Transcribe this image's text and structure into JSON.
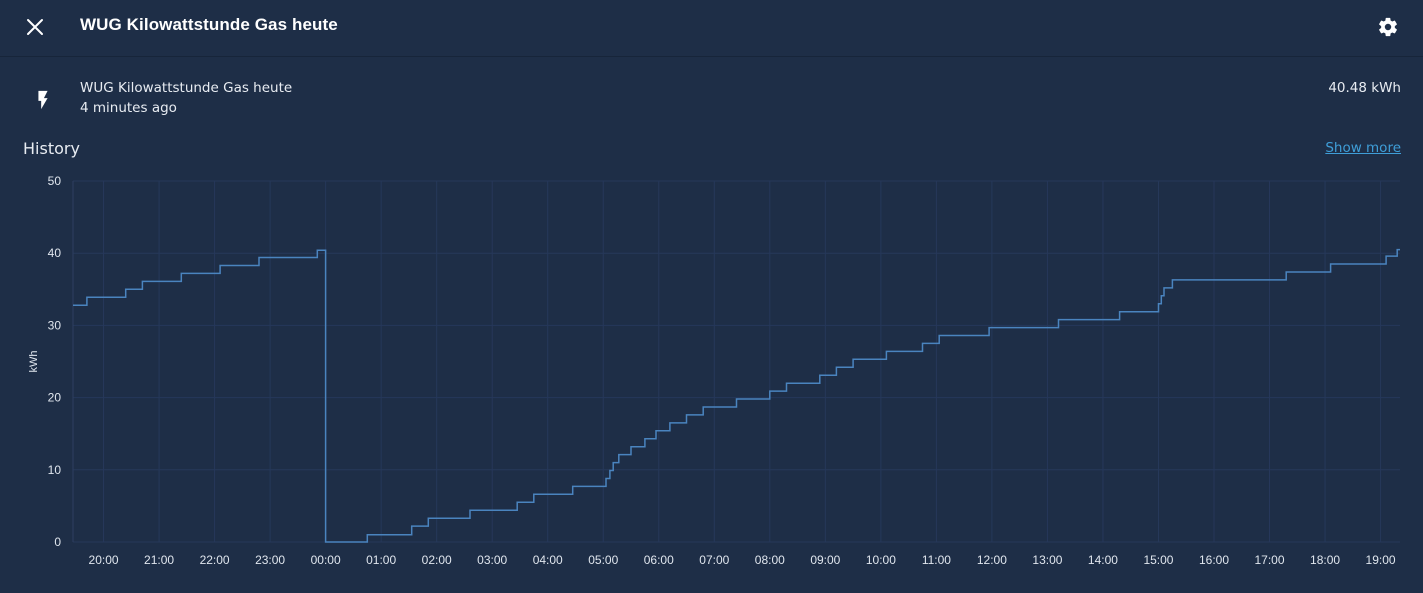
{
  "dialog": {
    "title": "WUG Kilowattstunde Gas heute"
  },
  "entity": {
    "name": "WUG Kilowattstunde Gas heute",
    "last_changed": "4 minutes ago",
    "state": "40.48 kWh",
    "icon": "flash-icon"
  },
  "history": {
    "title": "History",
    "show_more": "Show more"
  },
  "colors": {
    "background": "#1e2e47",
    "line": "#4a84bf",
    "link": "#3f9ed8"
  },
  "chart_data": {
    "type": "line",
    "step": true,
    "ylabel": "kWh",
    "ylim": [
      0,
      50
    ],
    "yticks": [
      0,
      10,
      20,
      30,
      40,
      50
    ],
    "xlim": [
      19.45,
      43.35
    ],
    "xticks": [
      {
        "x": 20,
        "label": "20:00"
      },
      {
        "x": 21,
        "label": "21:00"
      },
      {
        "x": 22,
        "label": "22:00"
      },
      {
        "x": 23,
        "label": "23:00"
      },
      {
        "x": 24,
        "label": "00:00"
      },
      {
        "x": 25,
        "label": "01:00"
      },
      {
        "x": 26,
        "label": "02:00"
      },
      {
        "x": 27,
        "label": "03:00"
      },
      {
        "x": 28,
        "label": "04:00"
      },
      {
        "x": 29,
        "label": "05:00"
      },
      {
        "x": 30,
        "label": "06:00"
      },
      {
        "x": 31,
        "label": "07:00"
      },
      {
        "x": 32,
        "label": "08:00"
      },
      {
        "x": 33,
        "label": "09:00"
      },
      {
        "x": 34,
        "label": "10:00"
      },
      {
        "x": 35,
        "label": "11:00"
      },
      {
        "x": 36,
        "label": "12:00"
      },
      {
        "x": 37,
        "label": "13:00"
      },
      {
        "x": 38,
        "label": "14:00"
      },
      {
        "x": 39,
        "label": "15:00"
      },
      {
        "x": 40,
        "label": "16:00"
      },
      {
        "x": 41,
        "label": "17:00"
      },
      {
        "x": 42,
        "label": "18:00"
      },
      {
        "x": 43,
        "label": "19:00"
      }
    ],
    "series": [
      {
        "points": [
          [
            19.45,
            32.8
          ],
          [
            19.7,
            33.9
          ],
          [
            20.4,
            35.0
          ],
          [
            20.7,
            36.1
          ],
          [
            21.4,
            37.2
          ],
          [
            22.1,
            38.3
          ],
          [
            22.8,
            39.4
          ],
          [
            23.85,
            40.4
          ],
          [
            24.0,
            0.0
          ],
          [
            24.25,
            0.0
          ],
          [
            24.75,
            1.0
          ],
          [
            25.55,
            2.2
          ],
          [
            25.85,
            3.3
          ],
          [
            26.6,
            4.4
          ],
          [
            27.45,
            5.5
          ],
          [
            27.75,
            6.6
          ],
          [
            28.45,
            7.7
          ],
          [
            29.05,
            8.8
          ],
          [
            29.12,
            9.9
          ],
          [
            29.18,
            11.0
          ],
          [
            29.28,
            12.1
          ],
          [
            29.5,
            13.2
          ],
          [
            29.75,
            14.3
          ],
          [
            29.95,
            15.4
          ],
          [
            30.2,
            16.5
          ],
          [
            30.5,
            17.6
          ],
          [
            30.8,
            18.7
          ],
          [
            31.4,
            19.8
          ],
          [
            32.0,
            20.9
          ],
          [
            32.3,
            22.0
          ],
          [
            32.9,
            23.1
          ],
          [
            33.2,
            24.2
          ],
          [
            33.5,
            25.3
          ],
          [
            34.1,
            26.4
          ],
          [
            34.75,
            27.5
          ],
          [
            35.05,
            28.6
          ],
          [
            35.95,
            29.7
          ],
          [
            37.2,
            30.8
          ],
          [
            38.3,
            31.9
          ],
          [
            39.0,
            33.0
          ],
          [
            39.05,
            34.1
          ],
          [
            39.1,
            35.2
          ],
          [
            39.25,
            36.3
          ],
          [
            41.3,
            37.4
          ],
          [
            42.1,
            38.5
          ],
          [
            43.1,
            39.6
          ],
          [
            43.3,
            40.5
          ],
          [
            43.35,
            40.5
          ]
        ]
      }
    ]
  }
}
